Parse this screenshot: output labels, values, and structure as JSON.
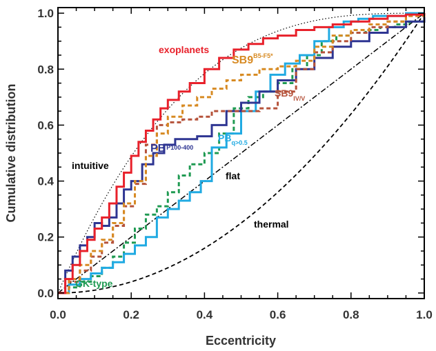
{
  "chart_data": {
    "type": "line",
    "xlabel": "Eccentricity",
    "ylabel": "Cumulative distribution",
    "xlim": [
      0.0,
      1.0
    ],
    "ylim": [
      -0.02,
      1.02
    ],
    "x_ticks": [
      "0.0",
      "0.2",
      "0.4",
      "0.6",
      "0.8",
      "1.0"
    ],
    "y_ticks": [
      "0.0",
      "0.2",
      "0.4",
      "0.6",
      "0.8",
      "1.0"
    ],
    "grid": false,
    "legend": "none",
    "annotations": {
      "exoplanets": "exoplanets",
      "sb9_main": "SB9",
      "sb9_sup": "B5-F5*",
      "sb9iv_main": "SB9",
      "sb9iv_sub": "IV/V",
      "pb_main": "PB",
      "pb_sub": "P100-400",
      "pbq_main": "PB",
      "pbq_sub": "q>0.5",
      "gk": "GK-type",
      "intuitive": "intuitive",
      "flat": "flat",
      "thermal": "thermal"
    },
    "series": [
      {
        "name": "exoplanets",
        "color": "#e8202a",
        "style": "solid",
        "x": [
          0.0,
          0.02,
          0.04,
          0.06,
          0.08,
          0.1,
          0.12,
          0.14,
          0.16,
          0.18,
          0.2,
          0.22,
          0.24,
          0.26,
          0.28,
          0.3,
          0.33,
          0.36,
          0.4,
          0.44,
          0.48,
          0.52,
          0.56,
          0.6,
          0.65,
          0.7,
          0.75,
          0.8,
          0.85,
          0.9,
          0.95,
          1.0
        ],
        "y": [
          0.0,
          0.05,
          0.1,
          0.15,
          0.19,
          0.23,
          0.27,
          0.32,
          0.38,
          0.43,
          0.49,
          0.54,
          0.58,
          0.62,
          0.66,
          0.69,
          0.72,
          0.75,
          0.8,
          0.84,
          0.87,
          0.89,
          0.91,
          0.92,
          0.94,
          0.95,
          0.96,
          0.97,
          0.98,
          0.99,
          0.995,
          1.0
        ]
      },
      {
        "name": "SB9 B5-F5*",
        "color": "#d78a22",
        "style": "dashed",
        "x": [
          0.0,
          0.03,
          0.06,
          0.09,
          0.12,
          0.15,
          0.18,
          0.21,
          0.24,
          0.27,
          0.3,
          0.34,
          0.38,
          0.42,
          0.46,
          0.5,
          0.55,
          0.6,
          0.65,
          0.7,
          0.75,
          0.8,
          0.85,
          0.9,
          0.95,
          1.0
        ],
        "y": [
          0.0,
          0.05,
          0.1,
          0.15,
          0.19,
          0.25,
          0.32,
          0.4,
          0.49,
          0.57,
          0.63,
          0.67,
          0.7,
          0.73,
          0.76,
          0.78,
          0.8,
          0.81,
          0.83,
          0.88,
          0.92,
          0.94,
          0.96,
          0.97,
          0.99,
          1.0
        ]
      },
      {
        "name": "SB9 IV/V",
        "color": "#b5523a",
        "style": "dashed",
        "x": [
          0.0,
          0.03,
          0.06,
          0.09,
          0.12,
          0.15,
          0.18,
          0.21,
          0.24,
          0.27,
          0.3,
          0.34,
          0.38,
          0.42,
          0.46,
          0.5,
          0.55,
          0.6,
          0.65,
          0.7,
          0.75,
          0.8,
          0.85,
          0.9,
          0.95,
          1.0
        ],
        "y": [
          0.0,
          0.04,
          0.08,
          0.13,
          0.18,
          0.24,
          0.31,
          0.39,
          0.53,
          0.6,
          0.61,
          0.62,
          0.63,
          0.65,
          0.65,
          0.65,
          0.66,
          0.72,
          0.8,
          0.86,
          0.9,
          0.93,
          0.95,
          0.97,
          0.99,
          1.0
        ]
      },
      {
        "name": "PB P100-400",
        "color": "#2e3592",
        "style": "solid",
        "x": [
          0.0,
          0.02,
          0.04,
          0.06,
          0.08,
          0.1,
          0.12,
          0.14,
          0.16,
          0.18,
          0.2,
          0.23,
          0.26,
          0.29,
          0.32,
          0.35,
          0.38,
          0.42,
          0.46,
          0.5,
          0.55,
          0.6,
          0.65,
          0.7,
          0.75,
          0.8,
          0.85,
          0.9,
          0.95,
          1.0
        ],
        "y": [
          0.0,
          0.08,
          0.13,
          0.17,
          0.2,
          0.25,
          0.24,
          0.27,
          0.32,
          0.37,
          0.4,
          0.46,
          0.5,
          0.53,
          0.55,
          0.55,
          0.56,
          0.6,
          0.65,
          0.68,
          0.72,
          0.76,
          0.8,
          0.84,
          0.88,
          0.9,
          0.93,
          0.95,
          0.97,
          1.0
        ]
      },
      {
        "name": "PB q>0.5",
        "color": "#20aae2",
        "style": "solid",
        "x": [
          0.0,
          0.03,
          0.06,
          0.09,
          0.12,
          0.15,
          0.18,
          0.21,
          0.24,
          0.27,
          0.3,
          0.33,
          0.36,
          0.39,
          0.42,
          0.46,
          0.5,
          0.54,
          0.58,
          0.62,
          0.66,
          0.7,
          0.74,
          0.78,
          0.82,
          0.86,
          0.9,
          0.95,
          1.0
        ],
        "y": [
          0.0,
          0.03,
          0.05,
          0.07,
          0.09,
          0.11,
          0.14,
          0.17,
          0.2,
          0.27,
          0.3,
          0.33,
          0.36,
          0.4,
          0.52,
          0.57,
          0.65,
          0.72,
          0.78,
          0.82,
          0.85,
          0.9,
          0.95,
          0.97,
          0.98,
          0.99,
          0.99,
          1.0,
          1.0
        ]
      },
      {
        "name": "GK-type",
        "color": "#1f9a52",
        "style": "dashed",
        "x": [
          0.0,
          0.03,
          0.06,
          0.09,
          0.12,
          0.15,
          0.18,
          0.21,
          0.24,
          0.27,
          0.3,
          0.33,
          0.36,
          0.4,
          0.44,
          0.48,
          0.52,
          0.56,
          0.6,
          0.64,
          0.68,
          0.72,
          0.76,
          0.8,
          0.84,
          0.88,
          0.92,
          0.96,
          1.0
        ],
        "y": [
          0.0,
          0.02,
          0.04,
          0.06,
          0.09,
          0.13,
          0.18,
          0.23,
          0.28,
          0.31,
          0.36,
          0.42,
          0.46,
          0.5,
          0.57,
          0.66,
          0.7,
          0.72,
          0.75,
          0.8,
          0.85,
          0.9,
          0.92,
          0.93,
          0.94,
          0.95,
          0.96,
          0.97,
          1.0
        ]
      }
    ],
    "reference_curves": [
      {
        "name": "intuitive",
        "style": "dotted",
        "formula": "1-(1-e)^3"
      },
      {
        "name": "flat",
        "style": "dashdot",
        "formula": "e"
      },
      {
        "name": "thermal",
        "style": "dashed",
        "formula": "e^2"
      }
    ]
  }
}
